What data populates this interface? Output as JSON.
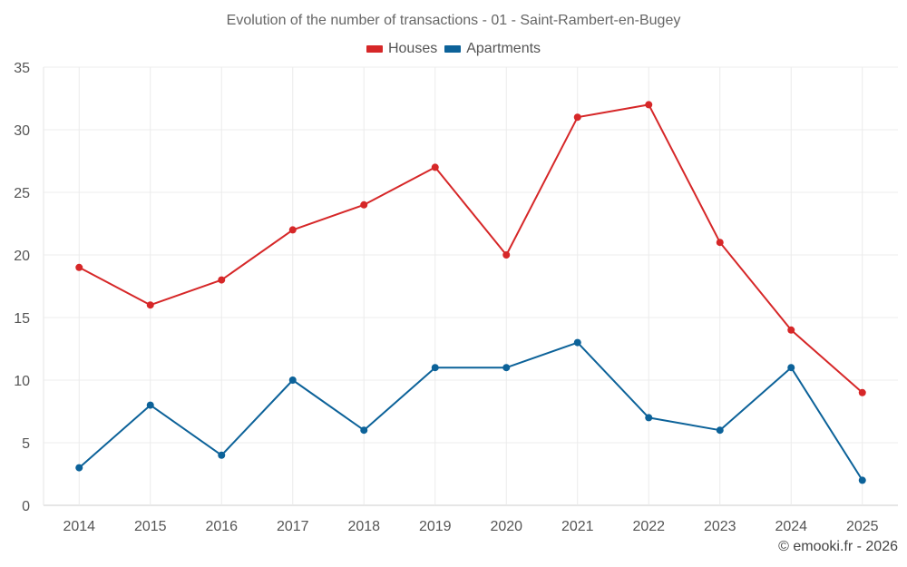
{
  "chart_data": {
    "type": "line",
    "title": "Evolution of the number of transactions - 01 - Saint-Rambert-en-Bugey",
    "xlabel": "",
    "ylabel": "",
    "categories": [
      "2014",
      "2015",
      "2016",
      "2017",
      "2018",
      "2019",
      "2020",
      "2021",
      "2022",
      "2023",
      "2024",
      "2025"
    ],
    "ylim": [
      0,
      35
    ],
    "yticks": [
      0,
      5,
      10,
      15,
      20,
      25,
      30,
      35
    ],
    "grid": true,
    "legend_position": "top-center",
    "series": [
      {
        "name": "Houses",
        "color": "#d62728",
        "values": [
          19,
          16,
          18,
          22,
          24,
          27,
          20,
          31,
          32,
          21,
          14,
          9
        ]
      },
      {
        "name": "Apartments",
        "color": "#0c6299",
        "values": [
          3,
          8,
          4,
          10,
          6,
          11,
          11,
          13,
          7,
          6,
          11,
          2
        ]
      }
    ]
  },
  "credit": "© emooki.fr - 2026"
}
